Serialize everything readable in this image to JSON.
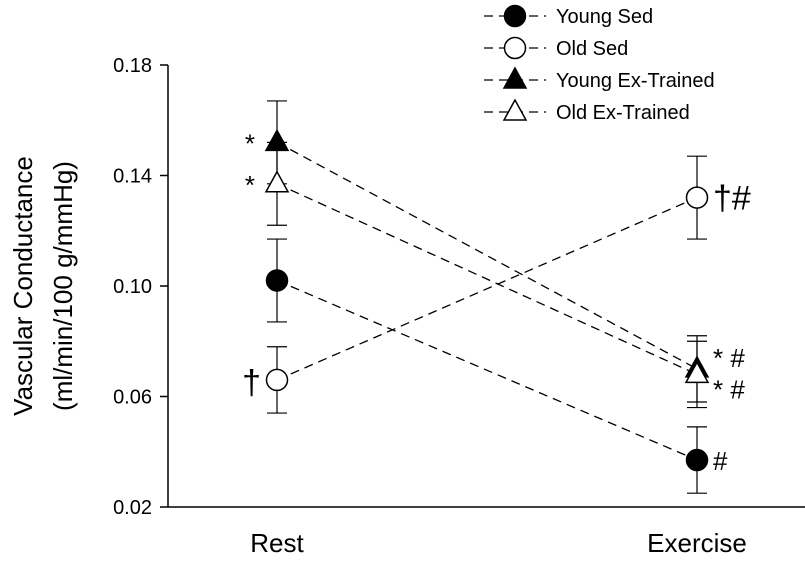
{
  "chart_data": {
    "type": "line",
    "categories": [
      "Rest",
      "Exercise"
    ],
    "ylabel_lines": [
      "Vascular Conductance",
      "(ml/min/100 g/mmHg)"
    ],
    "ylim": [
      0.02,
      0.18
    ],
    "yticks": [
      "0.02",
      "0.06",
      "0.10",
      "0.14",
      "0.18"
    ],
    "grid": false,
    "legend_position": "top-right",
    "series": [
      {
        "name": "Young Sed",
        "marker": "circle-filled",
        "values": [
          0.102,
          0.037
        ],
        "errors": [
          0.015,
          0.012
        ],
        "annotations": [
          "",
          "#"
        ]
      },
      {
        "name": "Old Sed",
        "marker": "circle-open",
        "values": [
          0.066,
          0.132
        ],
        "errors": [
          0.012,
          0.015
        ],
        "annotations": [
          "†",
          "†#"
        ]
      },
      {
        "name": "Young Ex-Trained",
        "marker": "triangle-filled",
        "values": [
          0.152,
          0.07
        ],
        "errors": [
          0.015,
          0.012
        ],
        "annotations": [
          "*",
          "* #"
        ]
      },
      {
        "name": "Old Ex-Trained",
        "marker": "triangle-open",
        "values": [
          0.137,
          0.068
        ],
        "errors": [
          0.015,
          0.012
        ],
        "annotations": [
          "*",
          "* #"
        ]
      }
    ]
  }
}
